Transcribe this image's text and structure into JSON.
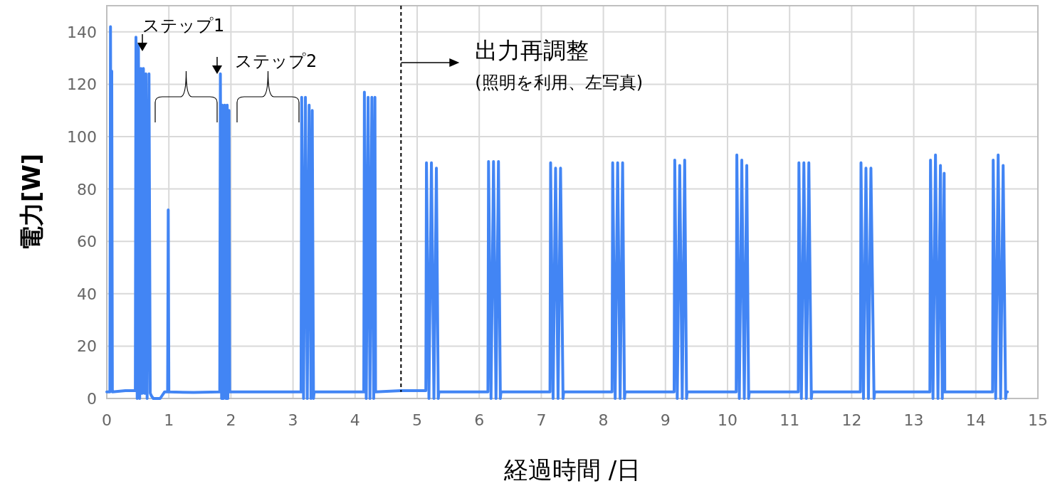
{
  "chart_data": {
    "type": "line",
    "xlabel": "経過時間 /日",
    "ylabel": "電力[W]",
    "xlim": [
      0,
      15
    ],
    "xticks": [
      0,
      1,
      2,
      3,
      4,
      5,
      6,
      7,
      8,
      9,
      10,
      11,
      12,
      13,
      14,
      15
    ],
    "ylim": [
      0,
      150
    ],
    "yticks": [
      0,
      20,
      40,
      60,
      80,
      100,
      120,
      140
    ],
    "grid": true,
    "line_style": "solid",
    "marker": "none",
    "series": [
      {
        "color": "#4285f4",
        "x": [
          0,
          0.05,
          0.06,
          0.07,
          0.08,
          0.09,
          0.3,
          0.46,
          0.47,
          0.49,
          0.51,
          0.53,
          0.55,
          0.57,
          0.59,
          0.61,
          0.63,
          0.65,
          0.68,
          0.7,
          0.72,
          0.75,
          0.8,
          0.86,
          0.93,
          0.98,
          0.99,
          1.0,
          1.4,
          1.82,
          1.83,
          1.85,
          1.86,
          1.88,
          1.9,
          1.92,
          1.94,
          1.95,
          1.97,
          1.98,
          3.13,
          3.14,
          3.17,
          3.2,
          3.23,
          3.26,
          3.29,
          3.31,
          3.33,
          3.34,
          4.14,
          4.15,
          4.18,
          4.21,
          4.24,
          4.27,
          4.3,
          4.32,
          4.33,
          4.74,
          5.14,
          5.15,
          5.19,
          5.23,
          5.27,
          5.31,
          5.34,
          5.35,
          6.14,
          6.15,
          6.19,
          6.23,
          6.27,
          6.31,
          6.34,
          6.35,
          7.14,
          7.15,
          7.19,
          7.23,
          7.27,
          7.31,
          7.35,
          7.36,
          8.14,
          8.15,
          8.19,
          8.23,
          8.27,
          8.31,
          8.34,
          8.35,
          9.14,
          9.15,
          9.19,
          9.23,
          9.27,
          9.31,
          9.34,
          9.35,
          10.14,
          10.15,
          10.19,
          10.23,
          10.27,
          10.31,
          10.34,
          10.35,
          11.14,
          11.15,
          11.19,
          11.23,
          11.27,
          11.31,
          11.35,
          11.36,
          12.14,
          12.15,
          12.19,
          12.23,
          12.27,
          12.31,
          12.36,
          12.37,
          13.26,
          13.27,
          13.31,
          13.35,
          13.39,
          13.43,
          13.46,
          13.49,
          13.5,
          14.27,
          14.28,
          14.32,
          14.36,
          14.4,
          14.44,
          14.48,
          14.49,
          14.51
        ],
        "values": [
          2.5,
          2.5,
          142,
          55,
          125,
          2.5,
          3,
          3,
          138,
          0,
          135,
          0,
          126,
          2,
          126,
          2,
          124,
          0,
          124,
          2,
          1,
          0,
          0,
          0,
          2.5,
          2.5,
          72,
          2.5,
          2.3,
          2.5,
          124,
          0,
          112,
          0,
          112,
          0,
          112,
          0,
          110,
          2.5,
          2.5,
          115,
          0,
          115,
          0,
          112,
          0,
          110,
          0,
          2.5,
          2.5,
          117,
          0,
          115,
          0,
          115,
          0,
          115,
          2.5,
          3,
          3,
          90,
          0,
          90,
          0,
          88,
          0,
          2.5,
          2.5,
          90.5,
          0,
          90.5,
          0,
          90.5,
          0,
          2.5,
          2.5,
          90,
          0,
          88,
          0,
          88,
          0,
          2.5,
          2.5,
          90,
          0,
          90,
          0,
          90,
          0,
          2.5,
          2.5,
          91,
          0,
          89,
          0,
          91,
          0,
          2.5,
          2.5,
          93,
          0,
          91,
          0,
          89,
          0,
          2.5,
          2.5,
          90,
          0,
          90,
          0,
          90,
          0,
          2.5,
          2.5,
          90,
          0,
          88,
          0,
          88,
          0,
          2.5,
          2.5,
          91,
          0,
          93,
          0,
          89,
          0,
          86,
          2.5,
          2.5,
          91,
          0,
          93,
          0,
          89,
          0,
          2.5,
          2.5
        ]
      }
    ],
    "ref_lines": [
      {
        "axis": "x",
        "value": 4.74,
        "label": "出力再調整",
        "color": "#000000",
        "line_style": "dashed"
      }
    ],
    "annotations": [
      "ステップ1",
      "ステップ2",
      "(照明を利用、左写真)"
    ]
  }
}
